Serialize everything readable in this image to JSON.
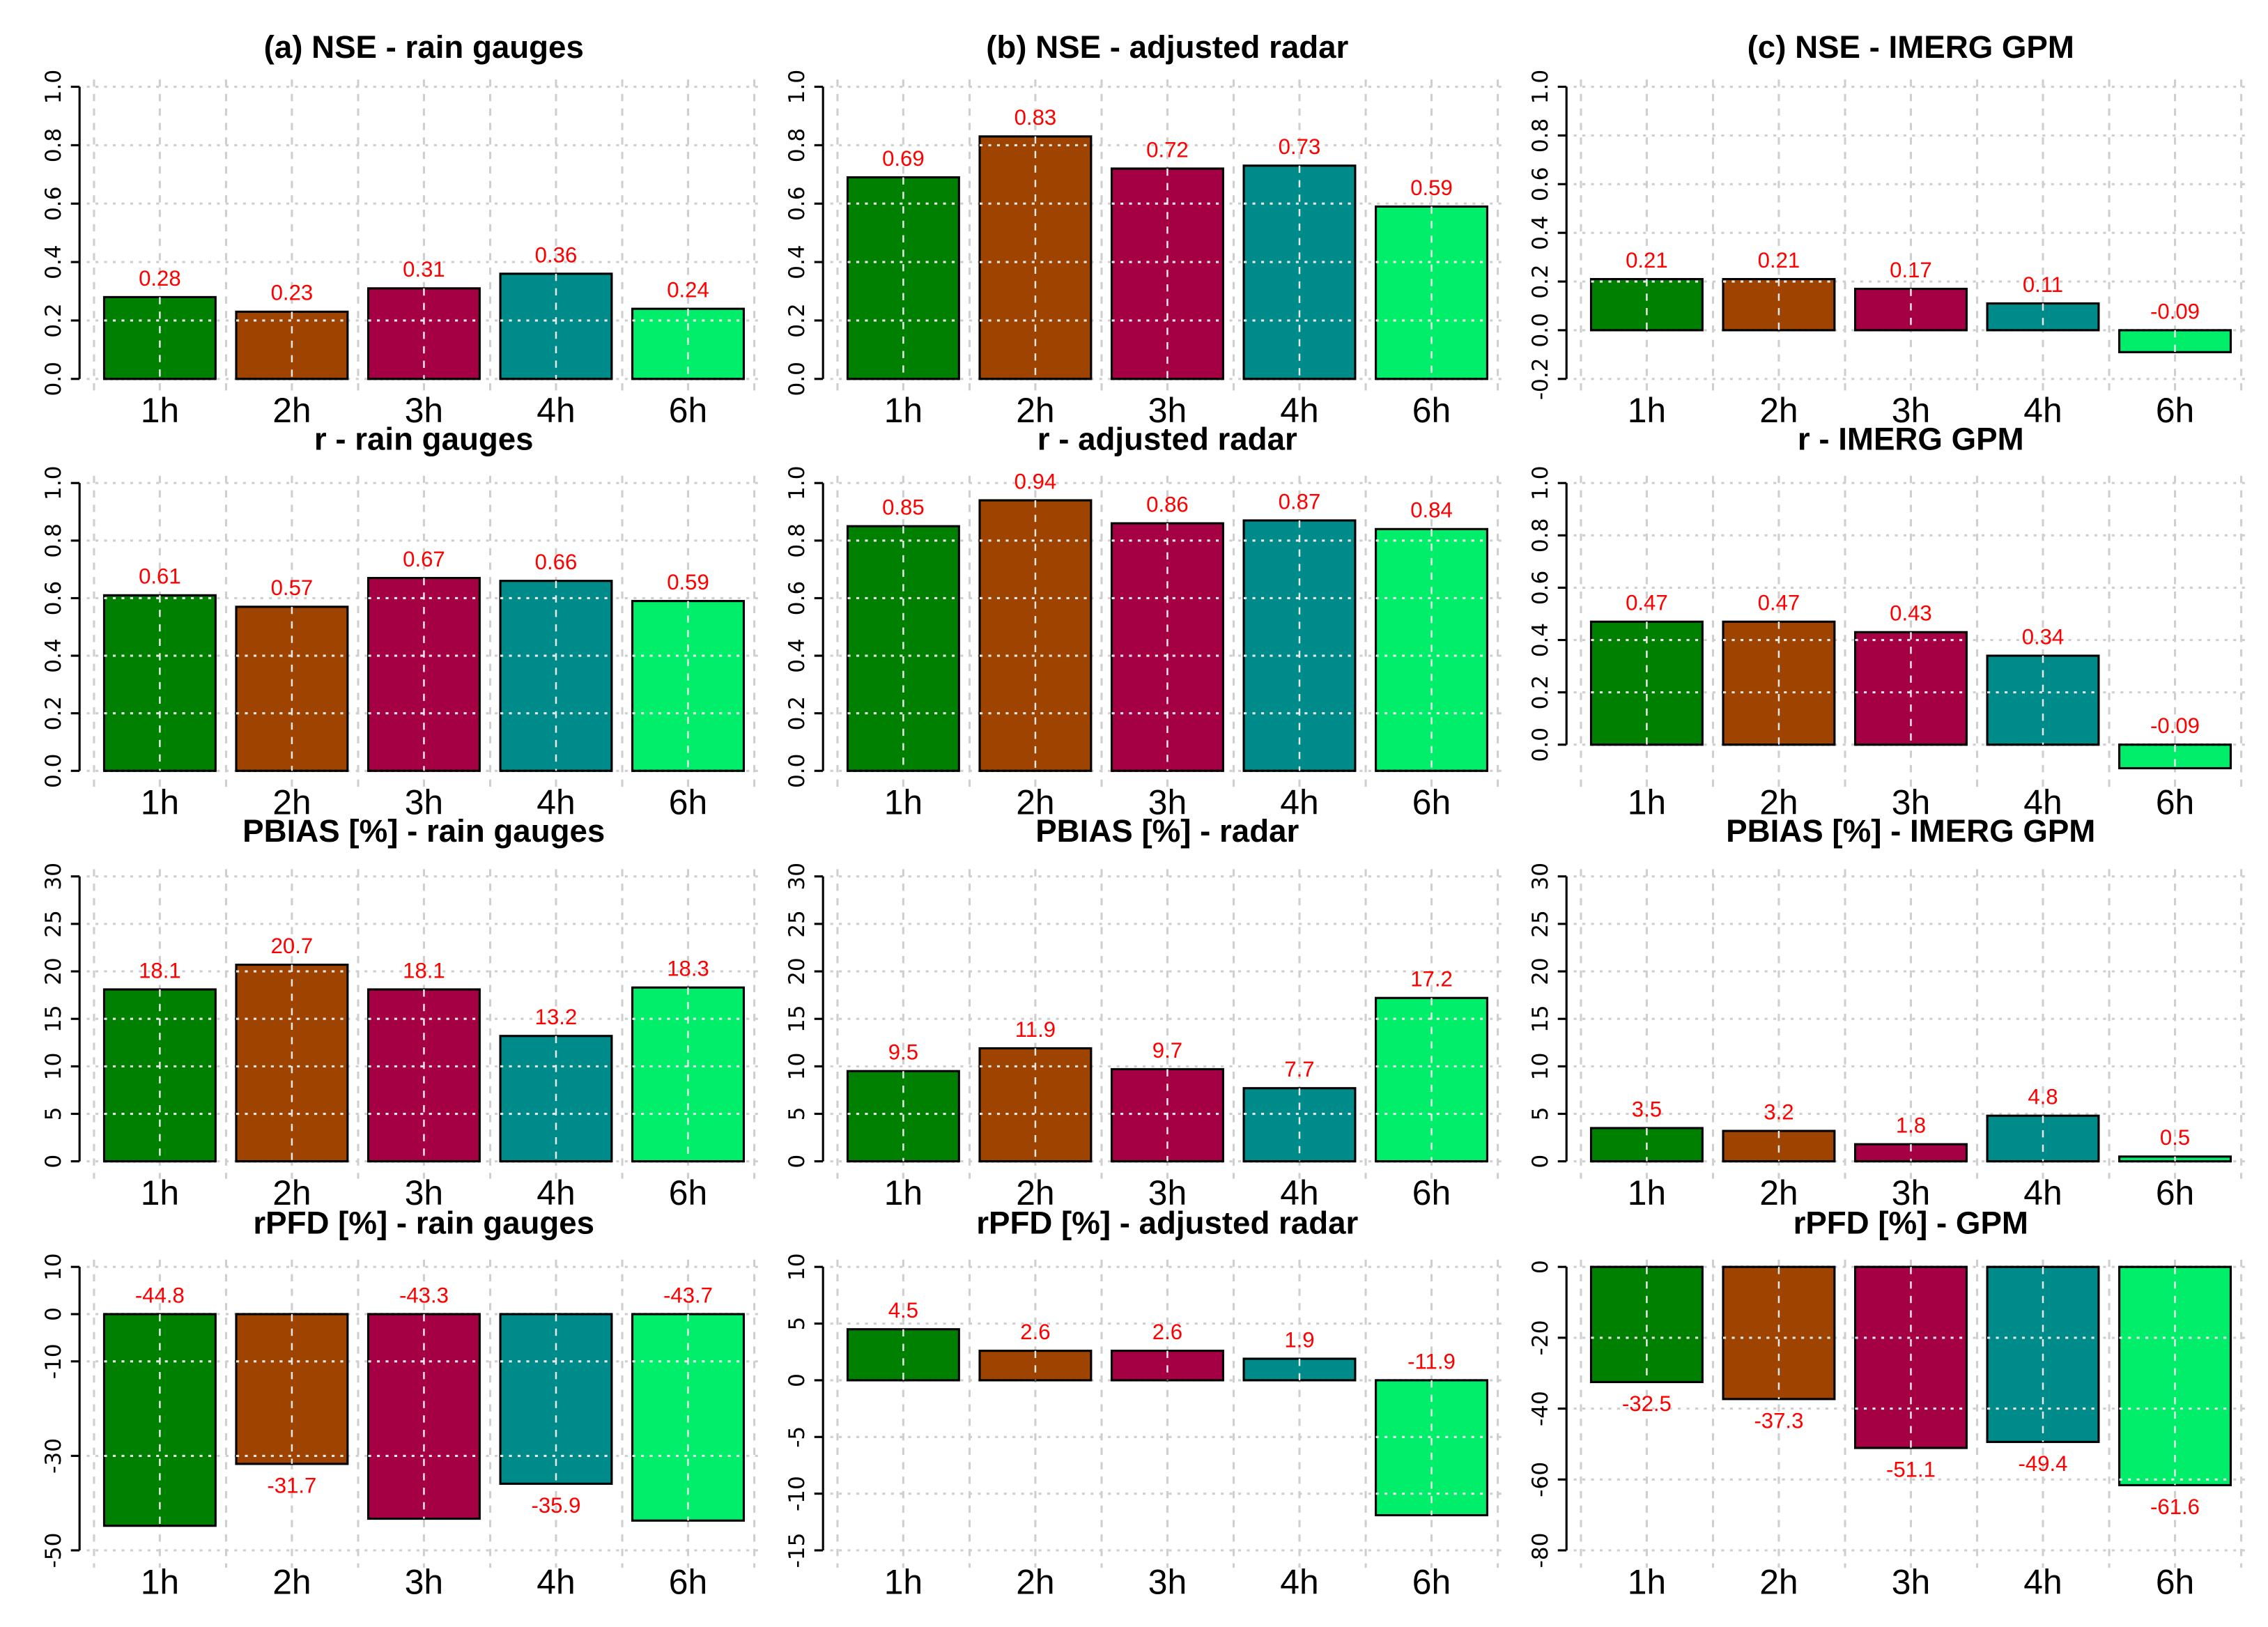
{
  "colors": [
    "#008000",
    "#9e4300",
    "#a50044",
    "#008b8b",
    "#00ee6a"
  ],
  "chart_data": [
    {
      "type": "bar",
      "title": "(a) NSE - rain gauges",
      "categories": [
        "1h",
        "2h",
        "3h",
        "4h",
        "6h"
      ],
      "values": [
        0.28,
        0.23,
        0.31,
        0.36,
        0.24
      ],
      "labels": [
        "0.28",
        "0.23",
        "0.31",
        "0.36",
        "0.24"
      ],
      "ylim": [
        0,
        1
      ],
      "yticks": [
        "0.0",
        "0.2",
        "0.4",
        "0.6",
        "0.8",
        "1.0"
      ],
      "ytick_values": [
        0,
        0.2,
        0.4,
        0.6,
        0.8,
        1.0
      ],
      "grid": true
    },
    {
      "type": "bar",
      "title": "(b) NSE - adjusted radar",
      "categories": [
        "1h",
        "2h",
        "3h",
        "4h",
        "6h"
      ],
      "values": [
        0.69,
        0.83,
        0.72,
        0.73,
        0.59
      ],
      "labels": [
        "0.69",
        "0.83",
        "0.72",
        "0.73",
        "0.59"
      ],
      "ylim": [
        0,
        1
      ],
      "yticks": [
        "0.0",
        "0.2",
        "0.4",
        "0.6",
        "0.8",
        "1.0"
      ],
      "ytick_values": [
        0,
        0.2,
        0.4,
        0.6,
        0.8,
        1.0
      ],
      "grid": true
    },
    {
      "type": "bar",
      "title": "(c) NSE - IMERG GPM",
      "categories": [
        "1h",
        "2h",
        "3h",
        "4h",
        "6h"
      ],
      "values": [
        0.21,
        0.21,
        0.17,
        0.11,
        -0.09
      ],
      "labels": [
        "0.21",
        "0.21",
        "0.17",
        "0.11",
        "-0.09"
      ],
      "ylim": [
        -0.2,
        1
      ],
      "yticks": [
        "-0.2",
        "0.0",
        "0.2",
        "0.4",
        "0.6",
        "0.8",
        "1.0"
      ],
      "ytick_values": [
        -0.2,
        0,
        0.2,
        0.4,
        0.6,
        0.8,
        1.0
      ],
      "grid": true
    },
    {
      "type": "bar",
      "title": "r - rain gauges",
      "categories": [
        "1h",
        "2h",
        "3h",
        "4h",
        "6h"
      ],
      "values": [
        0.61,
        0.57,
        0.67,
        0.66,
        0.59
      ],
      "labels": [
        "0.61",
        "0.57",
        "0.67",
        "0.66",
        "0.59"
      ],
      "ylim": [
        0,
        1
      ],
      "yticks": [
        "0.0",
        "0.2",
        "0.4",
        "0.6",
        "0.8",
        "1.0"
      ],
      "ytick_values": [
        0,
        0.2,
        0.4,
        0.6,
        0.8,
        1.0
      ],
      "grid": true
    },
    {
      "type": "bar",
      "title": "r - adjusted radar",
      "categories": [
        "1h",
        "2h",
        "3h",
        "4h",
        "6h"
      ],
      "values": [
        0.85,
        0.94,
        0.86,
        0.87,
        0.84
      ],
      "labels": [
        "0.85",
        "0.94",
        "0.86",
        "0.87",
        "0.84"
      ],
      "ylim": [
        0,
        1
      ],
      "yticks": [
        "0.0",
        "0.2",
        "0.4",
        "0.6",
        "0.8",
        "1.0"
      ],
      "ytick_values": [
        0,
        0.2,
        0.4,
        0.6,
        0.8,
        1.0
      ],
      "grid": true
    },
    {
      "type": "bar",
      "title": "r - IMERG GPM",
      "categories": [
        "1h",
        "2h",
        "3h",
        "4h",
        "6h"
      ],
      "values": [
        0.47,
        0.47,
        0.43,
        0.34,
        -0.09
      ],
      "labels": [
        "0.47",
        "0.47",
        "0.43",
        "0.34",
        "-0.09"
      ],
      "ylim": [
        -0.1,
        1
      ],
      "yticks": [
        "0.0",
        "0.2",
        "0.4",
        "0.6",
        "0.8",
        "1.0"
      ],
      "ytick_values": [
        0,
        0.2,
        0.4,
        0.6,
        0.8,
        1.0
      ],
      "grid": true
    },
    {
      "type": "bar",
      "title": "PBIAS [%] - rain gauges",
      "categories": [
        "1h",
        "2h",
        "3h",
        "4h",
        "6h"
      ],
      "values": [
        18.1,
        20.7,
        18.1,
        13.2,
        18.3
      ],
      "labels": [
        "18.1",
        "20.7",
        "18.1",
        "13.2",
        "18.3"
      ],
      "ylim": [
        0,
        30
      ],
      "yticks": [
        "0",
        "5",
        "10",
        "15",
        "20",
        "25",
        "30"
      ],
      "ytick_values": [
        0,
        5,
        10,
        15,
        20,
        25,
        30
      ],
      "grid": true
    },
    {
      "type": "bar",
      "title": "PBIAS [%] - radar",
      "categories": [
        "1h",
        "2h",
        "3h",
        "4h",
        "6h"
      ],
      "values": [
        9.5,
        11.9,
        9.7,
        7.7,
        17.2
      ],
      "labels": [
        "9.5",
        "11.9",
        "9.7",
        "7.7",
        "17.2"
      ],
      "ylim": [
        0,
        30
      ],
      "yticks": [
        "0",
        "5",
        "10",
        "15",
        "20",
        "25",
        "30"
      ],
      "ytick_values": [
        0,
        5,
        10,
        15,
        20,
        25,
        30
      ],
      "grid": true
    },
    {
      "type": "bar",
      "title": "PBIAS [%] - IMERG GPM",
      "categories": [
        "1h",
        "2h",
        "3h",
        "4h",
        "6h"
      ],
      "values": [
        3.5,
        3.2,
        1.8,
        4.8,
        0.5
      ],
      "labels": [
        "3.5",
        "3.2",
        "1.8",
        "4.8",
        "0.5"
      ],
      "ylim": [
        0,
        30
      ],
      "yticks": [
        "0",
        "5",
        "10",
        "15",
        "20",
        "25",
        "30"
      ],
      "ytick_values": [
        0,
        5,
        10,
        15,
        20,
        25,
        30
      ],
      "grid": true
    },
    {
      "type": "bar",
      "title": "rPFD [%] - rain gauges",
      "categories": [
        "1h",
        "2h",
        "3h",
        "4h",
        "6h"
      ],
      "values": [
        -44.8,
        -31.7,
        -43.3,
        -35.9,
        -43.7
      ],
      "labels": [
        "-44.8",
        "-31.7",
        "-43.3",
        "-35.9",
        "-43.7"
      ],
      "ylim": [
        -50,
        10
      ],
      "yticks": [
        "-50",
        "-30",
        "-10",
        "0",
        "10"
      ],
      "ytick_values": [
        -50,
        -30,
        -10,
        0,
        10
      ],
      "grid": true
    },
    {
      "type": "bar",
      "title": "rPFD [%] - adjusted radar",
      "categories": [
        "1h",
        "2h",
        "3h",
        "4h",
        "6h"
      ],
      "values": [
        4.5,
        2.6,
        2.6,
        1.9,
        -11.9
      ],
      "labels": [
        "4.5",
        "2.6",
        "2.6",
        "1.9",
        "-11.9"
      ],
      "ylim": [
        -15,
        10
      ],
      "yticks": [
        "-15",
        "-10",
        "-5",
        "0",
        "5",
        "10"
      ],
      "ytick_values": [
        -15,
        -10,
        -5,
        0,
        5,
        10
      ],
      "grid": true
    },
    {
      "type": "bar",
      "title": "rPFD [%] - GPM",
      "categories": [
        "1h",
        "2h",
        "3h",
        "4h",
        "6h"
      ],
      "values": [
        -32.5,
        -37.3,
        -51.1,
        -49.4,
        -61.6
      ],
      "labels": [
        "-32.5",
        "-37.3",
        "-51.1",
        "-49.4",
        "-61.6"
      ],
      "ylim": [
        -80,
        0
      ],
      "yticks": [
        "-80",
        "-60",
        "-40",
        "-20",
        "0"
      ],
      "ytick_values": [
        -80,
        -60,
        -40,
        -20,
        0
      ],
      "grid": true
    }
  ]
}
